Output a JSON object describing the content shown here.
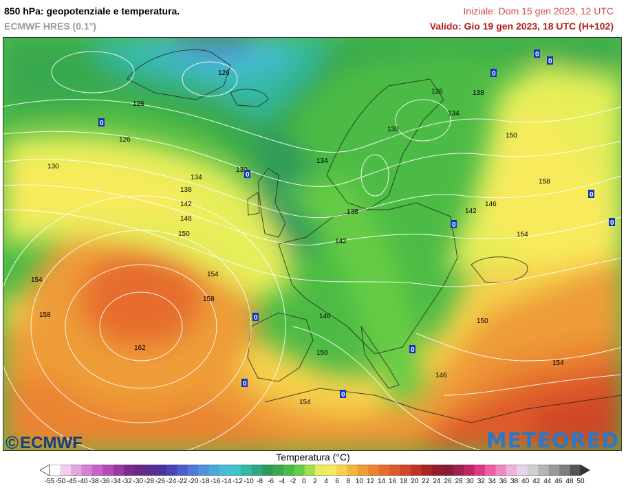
{
  "header": {
    "title": "850 hPa: geopotenziale e temperatura.",
    "subtitle": "ECMWF HRES (0.1°)",
    "initial": "Iniziale: Dom 15 gen 2023, 12 UTC",
    "valid": "Valido: Gio 19 gen 2023, 18 UTC (H+102)"
  },
  "logos": {
    "left": "ECMWF",
    "right": "METEORED"
  },
  "legend": {
    "title": "Temperatura (°C)",
    "ticks": [
      "-55",
      "-50",
      "-45",
      "-40",
      "-38",
      "-36",
      "-34",
      "-32",
      "-30",
      "-28",
      "-26",
      "-24",
      "-22",
      "-20",
      "-18",
      "-16",
      "-14",
      "-12",
      "-10",
      "-8",
      "-6",
      "-4",
      "-2",
      "0",
      "2",
      "4",
      "6",
      "8",
      "10",
      "12",
      "14",
      "16",
      "18",
      "20",
      "22",
      "24",
      "26",
      "28",
      "30",
      "32",
      "34",
      "36",
      "38",
      "40",
      "42",
      "44",
      "46",
      "48",
      "50"
    ],
    "colors": [
      "#ffffff",
      "#f3cdea",
      "#e3a6e0",
      "#d482d2",
      "#c465c6",
      "#b24bb6",
      "#9b37a3",
      "#7e2a8d",
      "#6a2b85",
      "#5b2d8c",
      "#4c339a",
      "#4a46b5",
      "#4e5ec9",
      "#4f79d6",
      "#4e92dd",
      "#4ba8db",
      "#46bcd6",
      "#3cc6c5",
      "#34b8a3",
      "#2ea883",
      "#2f9a5c",
      "#39a84e",
      "#4cbb45",
      "#66cc45",
      "#a4dd4e",
      "#e6ee5a",
      "#f8ea5d",
      "#f6d24b",
      "#f2b63e",
      "#ee9c38",
      "#ea8433",
      "#e66d2e",
      "#de5a2a",
      "#cf4628",
      "#bf3427",
      "#a82626",
      "#941d29",
      "#8b1a39",
      "#a01f4e",
      "#c22763",
      "#e03883",
      "#ee5fa6",
      "#f08ac3",
      "#f2b3d9",
      "#e8d6e8",
      "#cfcfcf",
      "#b5b5b5",
      "#9a9a9a",
      "#7d7d7d",
      "#555555"
    ],
    "colors_sample": "palette from dark magenta (cold) through greens to reds and greys (warm)"
  },
  "map": {
    "contour_labels": [
      {
        "text": "126"
      },
      {
        "text": "126"
      },
      {
        "text": "126"
      },
      {
        "text": "126"
      },
      {
        "text": "130"
      },
      {
        "text": "130"
      },
      {
        "text": "130"
      },
      {
        "text": "134"
      },
      {
        "text": "134"
      },
      {
        "text": "134"
      },
      {
        "text": "138"
      },
      {
        "text": "138"
      },
      {
        "text": "138"
      },
      {
        "text": "142"
      },
      {
        "text": "142"
      },
      {
        "text": "142"
      },
      {
        "text": "146"
      },
      {
        "text": "146"
      },
      {
        "text": "146"
      },
      {
        "text": "146"
      },
      {
        "text": "150"
      },
      {
        "text": "150"
      },
      {
        "text": "150"
      },
      {
        "text": "150"
      },
      {
        "text": "154"
      },
      {
        "text": "154"
      },
      {
        "text": "154"
      },
      {
        "text": "154"
      },
      {
        "text": "154"
      },
      {
        "text": "158"
      },
      {
        "text": "158"
      },
      {
        "text": "158"
      },
      {
        "text": "162"
      }
    ],
    "zero_markers": [
      "0",
      "0",
      "0",
      "0",
      "0",
      "0",
      "0",
      "0",
      "0",
      "0",
      "0",
      "0"
    ]
  }
}
